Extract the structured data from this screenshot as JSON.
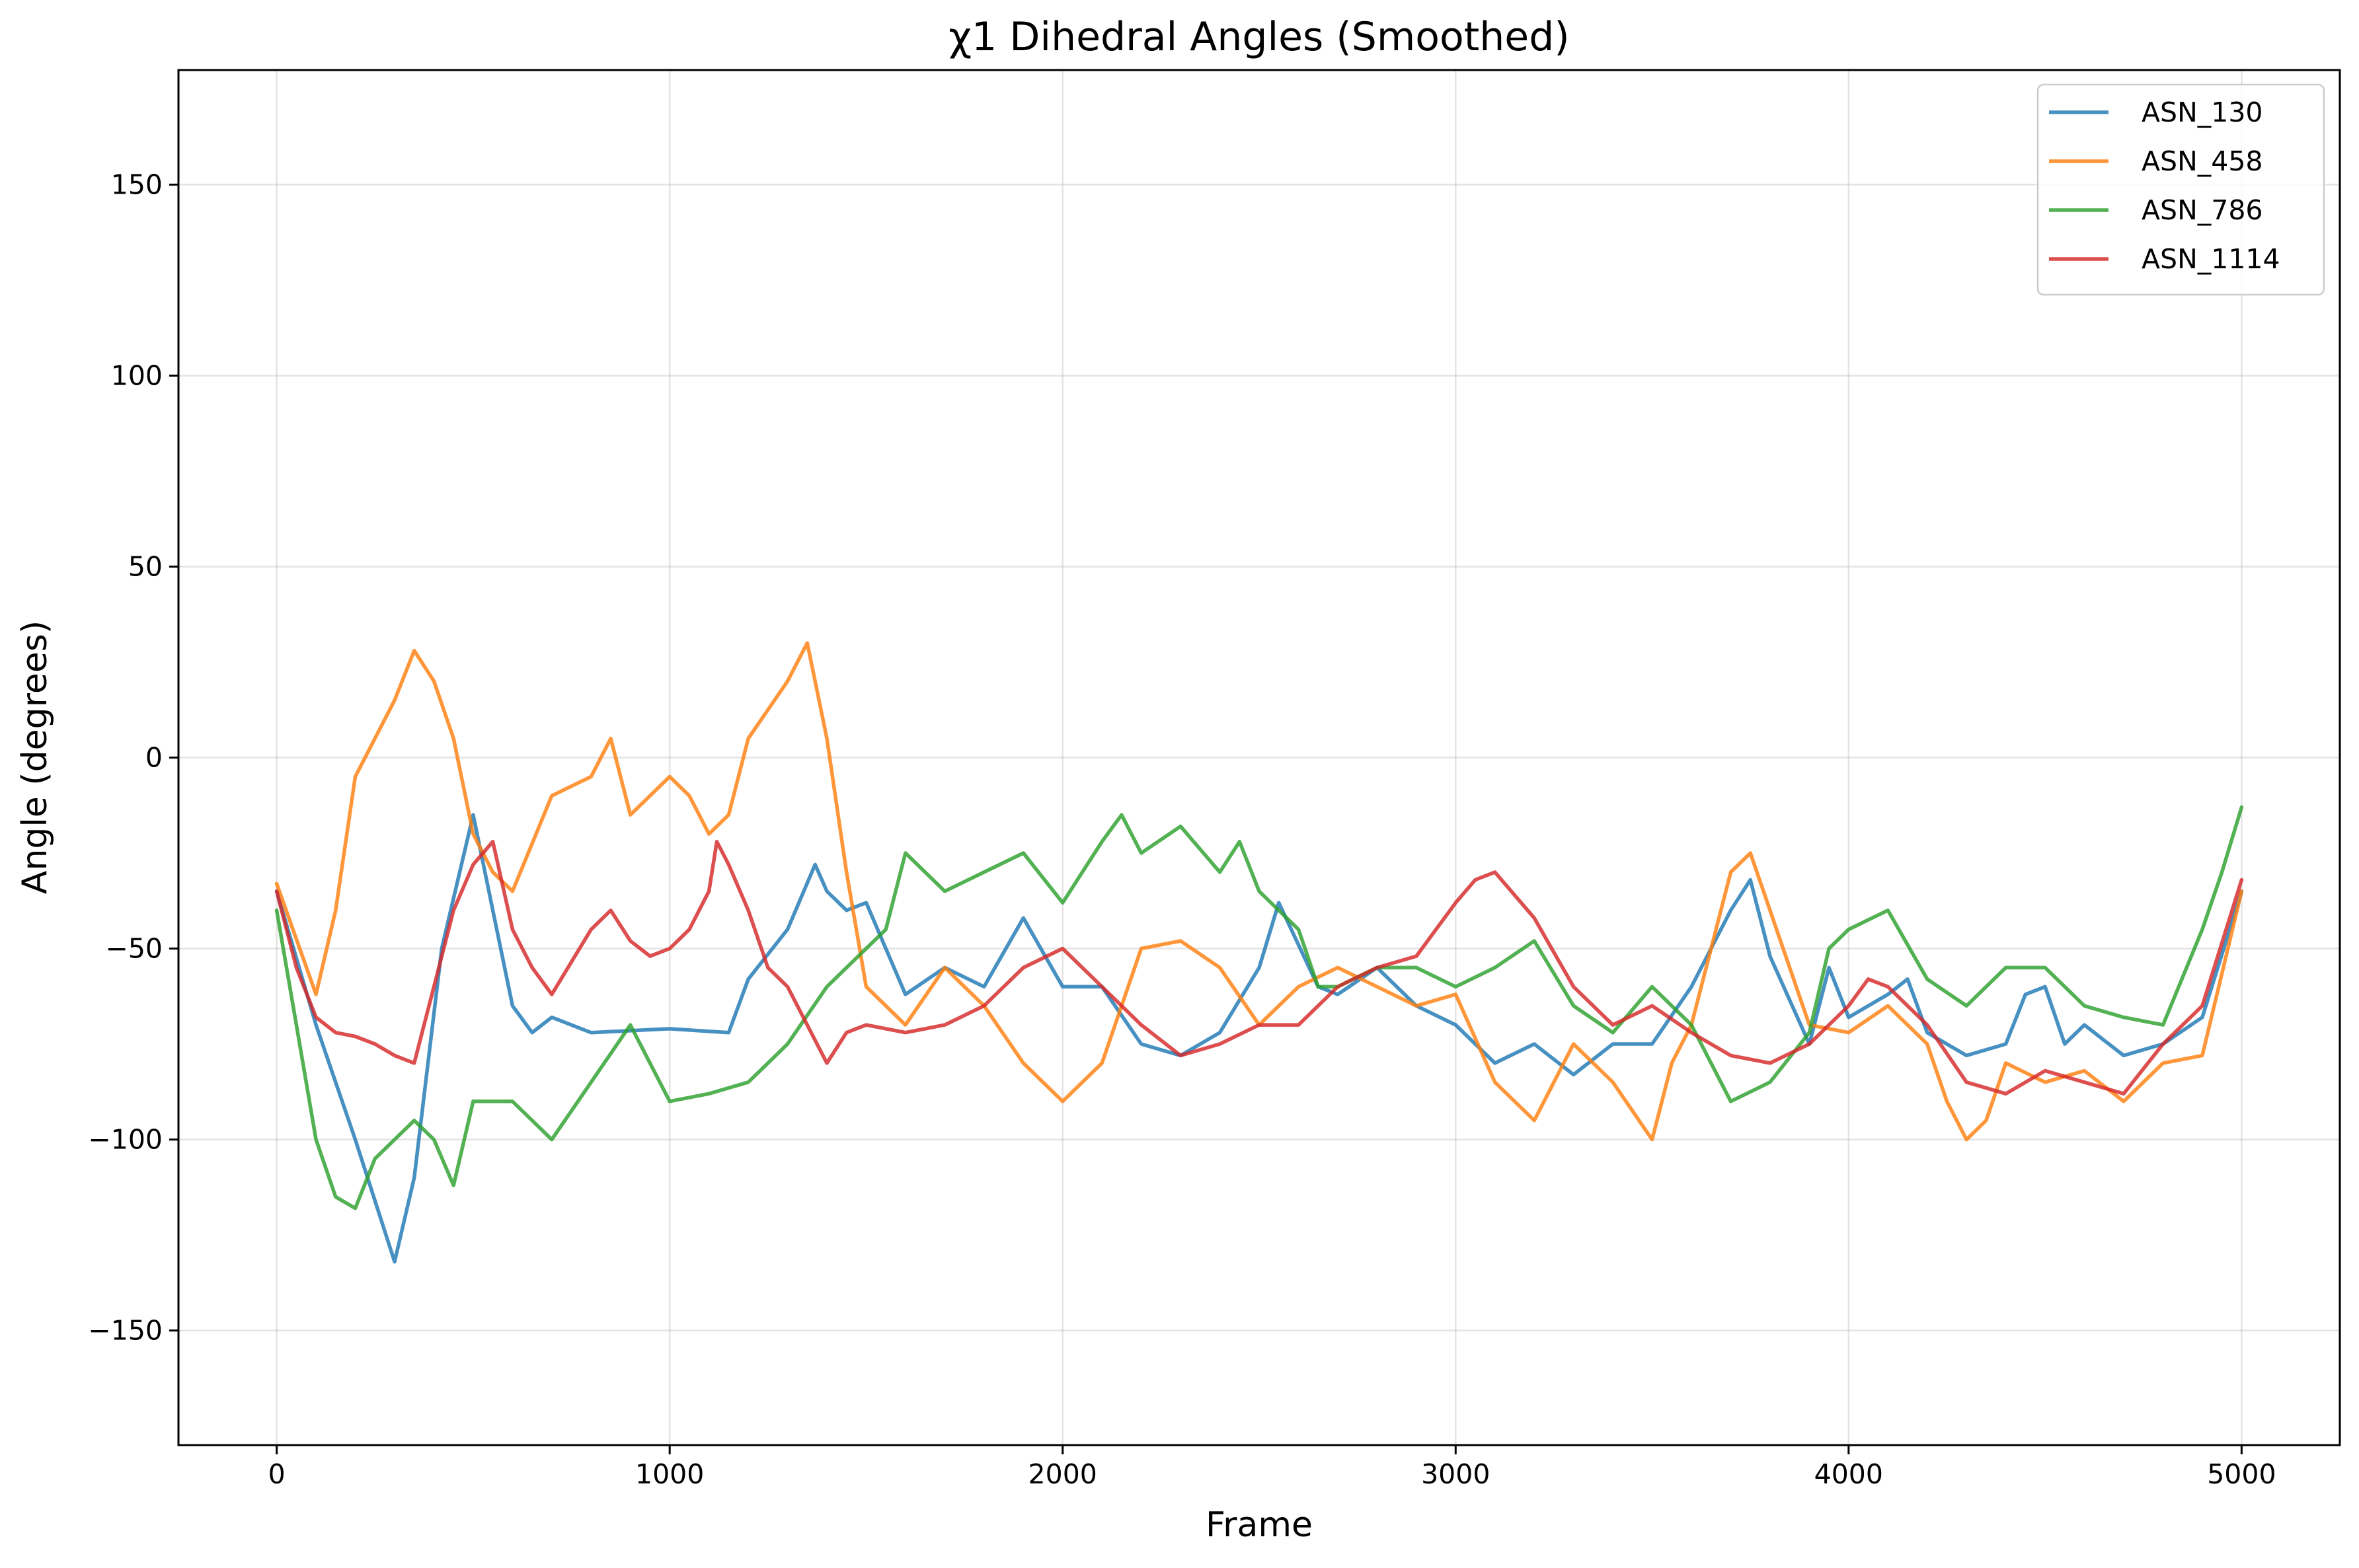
{
  "chart_data": {
    "type": "line",
    "title": "χ1 Dihedral Angles (Smoothed)",
    "xlabel": "Frame",
    "ylabel": "Angle (degrees)",
    "xlim": [
      -250,
      5250
    ],
    "ylim": [
      -180,
      180
    ],
    "x_ticks": [
      0,
      1000,
      2000,
      3000,
      4000,
      5000
    ],
    "x_tick_labels": [
      "0",
      "1000",
      "2000",
      "3000",
      "4000",
      "5000"
    ],
    "y_ticks": [
      -150,
      -100,
      -50,
      0,
      50,
      100,
      150
    ],
    "y_tick_labels": [
      "−150",
      "−100",
      "−50",
      "0",
      "50",
      "100",
      "150"
    ],
    "grid": true,
    "legend_position": "top-right",
    "series": [
      {
        "name": "ASN_130",
        "color": "#1f77b4",
        "x": [
          0,
          100,
          200,
          300,
          350,
          420,
          500,
          550,
          600,
          650,
          700,
          800,
          1000,
          1150,
          1200,
          1300,
          1370,
          1400,
          1450,
          1500,
          1600,
          1700,
          1800,
          1900,
          2000,
          2100,
          2200,
          2300,
          2400,
          2500,
          2550,
          2650,
          2700,
          2800,
          2900,
          3000,
          3100,
          3200,
          3300,
          3400,
          3500,
          3600,
          3700,
          3750,
          3800,
          3900,
          3950,
          4000,
          4100,
          4150,
          4200,
          4300,
          4400,
          4450,
          4500,
          4550,
          4600,
          4700,
          4800,
          4900,
          5000
        ],
        "values": [
          -35,
          -70,
          -100,
          -132,
          -110,
          -50,
          -15,
          -40,
          -65,
          -72,
          -68,
          -72,
          -71,
          -72,
          -58,
          -45,
          -28,
          -35,
          -40,
          -38,
          -62,
          -55,
          -60,
          -42,
          -60,
          -60,
          -75,
          -78,
          -72,
          -55,
          -38,
          -60,
          -62,
          -55,
          -65,
          -70,
          -80,
          -75,
          -83,
          -75,
          -75,
          -60,
          -40,
          -32,
          -52,
          -75,
          -55,
          -68,
          -62,
          -58,
          -72,
          -78,
          -75,
          -62,
          -60,
          -75,
          -70,
          -78,
          -75,
          -68,
          -35
        ]
      },
      {
        "name": "ASN_458",
        "color": "#ff7f0e",
        "x": [
          0,
          100,
          150,
          200,
          300,
          350,
          400,
          450,
          500,
          550,
          600,
          700,
          800,
          850,
          900,
          1000,
          1050,
          1100,
          1150,
          1200,
          1300,
          1350,
          1400,
          1450,
          1500,
          1600,
          1700,
          1800,
          1900,
          2000,
          2100,
          2200,
          2300,
          2400,
          2500,
          2600,
          2700,
          2800,
          2900,
          3000,
          3100,
          3200,
          3300,
          3400,
          3500,
          3550,
          3600,
          3700,
          3750,
          3800,
          3900,
          4000,
          4100,
          4200,
          4250,
          4300,
          4350,
          4400,
          4500,
          4600,
          4700,
          4800,
          4900,
          5000
        ],
        "values": [
          -33,
          -62,
          -40,
          -5,
          15,
          28,
          20,
          5,
          -20,
          -30,
          -35,
          -10,
          -5,
          5,
          -15,
          -5,
          -10,
          -20,
          -15,
          5,
          20,
          30,
          5,
          -30,
          -60,
          -70,
          -55,
          -65,
          -80,
          -90,
          -80,
          -50,
          -48,
          -55,
          -70,
          -60,
          -55,
          -60,
          -65,
          -62,
          -85,
          -95,
          -75,
          -85,
          -100,
          -80,
          -70,
          -30,
          -25,
          -40,
          -70,
          -72,
          -65,
          -75,
          -90,
          -100,
          -95,
          -80,
          -85,
          -82,
          -90,
          -80,
          -78,
          -35
        ]
      },
      {
        "name": "ASN_786",
        "color": "#2ca02c",
        "x": [
          0,
          50,
          100,
          150,
          200,
          250,
          300,
          350,
          400,
          450,
          500,
          600,
          700,
          800,
          900,
          1000,
          1100,
          1200,
          1300,
          1400,
          1500,
          1550,
          1600,
          1700,
          1800,
          1900,
          2000,
          2100,
          2150,
          2200,
          2300,
          2400,
          2450,
          2500,
          2600,
          2650,
          2700,
          2800,
          2900,
          3000,
          3100,
          3200,
          3300,
          3400,
          3500,
          3600,
          3650,
          3700,
          3800,
          3900,
          3950,
          4000,
          4100,
          4200,
          4300,
          4400,
          4500,
          4600,
          4700,
          4800,
          4900,
          4950,
          5000
        ],
        "values": [
          -40,
          -70,
          -100,
          -115,
          -118,
          -105,
          -100,
          -95,
          -100,
          -112,
          -90,
          -90,
          -100,
          -85,
          -70,
          -90,
          -88,
          -85,
          -75,
          -60,
          -50,
          -45,
          -25,
          -35,
          -30,
          -25,
          -38,
          -22,
          -15,
          -25,
          -18,
          -30,
          -22,
          -35,
          -45,
          -60,
          -60,
          -55,
          -55,
          -60,
          -55,
          -48,
          -65,
          -72,
          -60,
          -70,
          -80,
          -90,
          -85,
          -72,
          -50,
          -45,
          -40,
          -58,
          -65,
          -55,
          -55,
          -65,
          -68,
          -70,
          -45,
          -30,
          -13
        ]
      },
      {
        "name": "ASN_1114",
        "color": "#d62728",
        "x": [
          0,
          50,
          100,
          150,
          200,
          250,
          300,
          350,
          400,
          450,
          500,
          550,
          600,
          650,
          700,
          800,
          850,
          900,
          950,
          1000,
          1050,
          1100,
          1120,
          1150,
          1200,
          1250,
          1300,
          1400,
          1450,
          1500,
          1600,
          1700,
          1800,
          1900,
          2000,
          2100,
          2200,
          2300,
          2400,
          2500,
          2600,
          2700,
          2800,
          2900,
          3000,
          3050,
          3100,
          3200,
          3300,
          3400,
          3500,
          3600,
          3700,
          3800,
          3900,
          4000,
          4050,
          4100,
          4200,
          4300,
          4400,
          4500,
          4600,
          4700,
          4800,
          4900,
          5000
        ],
        "values": [
          -35,
          -55,
          -68,
          -72,
          -73,
          -75,
          -78,
          -80,
          -60,
          -40,
          -28,
          -22,
          -45,
          -55,
          -62,
          -45,
          -40,
          -48,
          -52,
          -50,
          -45,
          -35,
          -22,
          -28,
          -40,
          -55,
          -60,
          -80,
          -72,
          -70,
          -72,
          -70,
          -65,
          -55,
          -50,
          -60,
          -70,
          -78,
          -75,
          -70,
          -70,
          -60,
          -55,
          -52,
          -38,
          -32,
          -30,
          -42,
          -60,
          -70,
          -65,
          -72,
          -78,
          -80,
          -75,
          -65,
          -58,
          -60,
          -70,
          -85,
          -88,
          -82,
          -85,
          -88,
          -75,
          -65,
          -32
        ]
      }
    ]
  }
}
